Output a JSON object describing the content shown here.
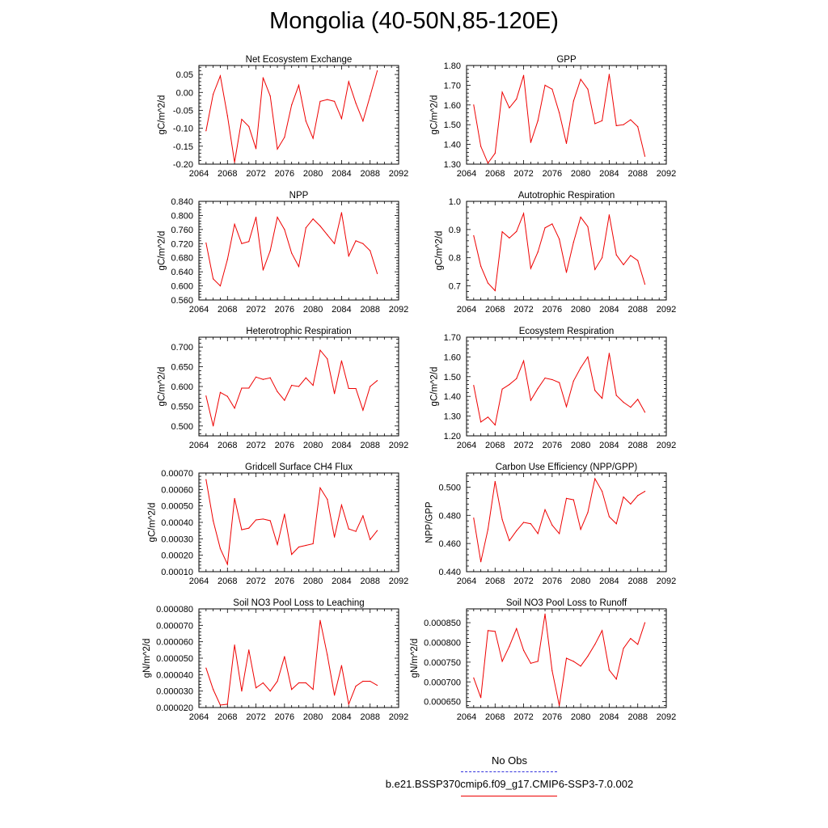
{
  "title": "Mongolia (40-50N,85-120E)",
  "legend": {
    "obs_label": "No Obs",
    "case_label": "b.e21.BSSP370cmip6.f09_g17.CMIP6-SSP3-7.0.002",
    "obs_color": "#3333dd",
    "case_color": "#ee0000"
  },
  "chart_data": [
    {
      "type": "line",
      "title": "Net Ecosystem Exchange",
      "ylabel": "gC/m^2/d",
      "xlim": [
        2064,
        2092
      ],
      "xticks": [
        2064,
        2068,
        2072,
        2076,
        2080,
        2084,
        2088,
        2092
      ],
      "xtick_labels": [
        "2064",
        "2068",
        "2072",
        "2076",
        "2080",
        "2084",
        "2088",
        "2092"
      ],
      "ylim": [
        -0.2,
        0.075
      ],
      "yticks": [
        -0.2,
        -0.15,
        -0.1,
        -0.05,
        0.0,
        0.05
      ],
      "ytick_labels": [
        "-0.20",
        "-0.15",
        "-0.10",
        "-0.05",
        "0.00",
        "0.05"
      ],
      "series": [
        {
          "color": "#ee0000",
          "x": [
            2065,
            2066,
            2067,
            2068,
            2069,
            2070,
            2071,
            2072,
            2073,
            2074,
            2075,
            2076,
            2077,
            2078,
            2079,
            2080,
            2081,
            2082,
            2083,
            2084,
            2085,
            2086,
            2087,
            2088,
            2089
          ],
          "values": [
            -0.107,
            -0.005,
            0.046,
            -0.065,
            -0.195,
            -0.075,
            -0.095,
            -0.157,
            0.041,
            -0.01,
            -0.158,
            -0.125,
            -0.035,
            0.02,
            -0.08,
            -0.128,
            -0.025,
            -0.02,
            -0.025,
            -0.073,
            0.03,
            -0.03,
            -0.08,
            -0.01,
            0.06
          ]
        }
      ]
    },
    {
      "type": "line",
      "title": "GPP",
      "ylabel": "gC/m^2/d",
      "xlim": [
        2064,
        2092
      ],
      "xticks": [
        2064,
        2068,
        2072,
        2076,
        2080,
        2084,
        2088,
        2092
      ],
      "xtick_labels": [
        "2064",
        "2068",
        "2072",
        "2076",
        "2080",
        "2084",
        "2088",
        "2092"
      ],
      "ylim": [
        1.3,
        1.8
      ],
      "yticks": [
        1.3,
        1.4,
        1.5,
        1.6,
        1.7,
        1.8
      ],
      "ytick_labels": [
        "1.30",
        "1.40",
        "1.50",
        "1.60",
        "1.70",
        "1.80"
      ],
      "series": [
        {
          "color": "#ee0000",
          "x": [
            2065,
            2066,
            2067,
            2068,
            2069,
            2070,
            2071,
            2072,
            2073,
            2074,
            2075,
            2076,
            2077,
            2078,
            2079,
            2080,
            2081,
            2082,
            2083,
            2084,
            2085,
            2086,
            2087,
            2088,
            2089
          ],
          "values": [
            1.6,
            1.39,
            1.305,
            1.355,
            1.665,
            1.585,
            1.63,
            1.75,
            1.41,
            1.52,
            1.7,
            1.68,
            1.56,
            1.405,
            1.62,
            1.73,
            1.68,
            1.505,
            1.52,
            1.755,
            1.495,
            1.5,
            1.525,
            1.49,
            1.34
          ]
        }
      ]
    },
    {
      "type": "line",
      "title": "NPP",
      "ylabel": "gC/m^2/d",
      "xlim": [
        2064,
        2092
      ],
      "xticks": [
        2064,
        2068,
        2072,
        2076,
        2080,
        2084,
        2088,
        2092
      ],
      "xtick_labels": [
        "2064",
        "2068",
        "2072",
        "2076",
        "2080",
        "2084",
        "2088",
        "2092"
      ],
      "ylim": [
        0.56,
        0.84
      ],
      "yticks": [
        0.56,
        0.6,
        0.64,
        0.68,
        0.72,
        0.76,
        0.8,
        0.84
      ],
      "ytick_labels": [
        "0.560",
        "0.600",
        "0.640",
        "0.680",
        "0.720",
        "0.760",
        "0.800",
        "0.840"
      ],
      "series": [
        {
          "color": "#ee0000",
          "x": [
            2065,
            2066,
            2067,
            2068,
            2069,
            2070,
            2071,
            2072,
            2073,
            2074,
            2075,
            2076,
            2077,
            2078,
            2079,
            2080,
            2081,
            2082,
            2083,
            2084,
            2085,
            2086,
            2087,
            2088,
            2089
          ],
          "values": [
            0.722,
            0.62,
            0.6,
            0.675,
            0.775,
            0.72,
            0.726,
            0.795,
            0.645,
            0.7,
            0.795,
            0.76,
            0.693,
            0.655,
            0.765,
            0.79,
            0.77,
            0.745,
            0.72,
            0.808,
            0.685,
            0.728,
            0.72,
            0.7,
            0.635
          ]
        }
      ]
    },
    {
      "type": "line",
      "title": "Autotrophic Respiration",
      "ylabel": "gC/m^2/d",
      "xlim": [
        2064,
        2092
      ],
      "xticks": [
        2064,
        2068,
        2072,
        2076,
        2080,
        2084,
        2088,
        2092
      ],
      "xtick_labels": [
        "2064",
        "2068",
        "2072",
        "2076",
        "2080",
        "2084",
        "2088",
        "2092"
      ],
      "ylim": [
        0.65,
        1.0
      ],
      "yticks": [
        0.7,
        0.8,
        0.9,
        1.0
      ],
      "ytick_labels": [
        "0.7",
        "0.8",
        "0.9",
        "1.0"
      ],
      "series": [
        {
          "color": "#ee0000",
          "x": [
            2065,
            2066,
            2067,
            2068,
            2069,
            2070,
            2071,
            2072,
            2073,
            2074,
            2075,
            2076,
            2077,
            2078,
            2079,
            2080,
            2081,
            2082,
            2083,
            2084,
            2085,
            2086,
            2087,
            2088,
            2089
          ],
          "values": [
            0.878,
            0.77,
            0.71,
            0.683,
            0.892,
            0.87,
            0.893,
            0.957,
            0.762,
            0.82,
            0.906,
            0.92,
            0.866,
            0.748,
            0.855,
            0.944,
            0.91,
            0.758,
            0.8,
            0.952,
            0.81,
            0.775,
            0.808,
            0.79,
            0.706
          ]
        }
      ]
    },
    {
      "type": "line",
      "title": "Heterotrophic Respiration",
      "ylabel": "gC/m^2/d",
      "xlim": [
        2064,
        2092
      ],
      "xticks": [
        2064,
        2068,
        2072,
        2076,
        2080,
        2084,
        2088,
        2092
      ],
      "xtick_labels": [
        "2064",
        "2068",
        "2072",
        "2076",
        "2080",
        "2084",
        "2088",
        "2092"
      ],
      "ylim": [
        0.475,
        0.725
      ],
      "yticks": [
        0.5,
        0.55,
        0.6,
        0.65,
        0.7
      ],
      "ytick_labels": [
        "0.500",
        "0.550",
        "0.600",
        "0.650",
        "0.700"
      ],
      "series": [
        {
          "color": "#ee0000",
          "x": [
            2065,
            2066,
            2067,
            2068,
            2069,
            2070,
            2071,
            2072,
            2073,
            2074,
            2075,
            2076,
            2077,
            2078,
            2079,
            2080,
            2081,
            2082,
            2083,
            2084,
            2085,
            2086,
            2087,
            2088,
            2089
          ],
          "values": [
            0.576,
            0.5,
            0.585,
            0.575,
            0.545,
            0.596,
            0.596,
            0.624,
            0.618,
            0.622,
            0.587,
            0.565,
            0.603,
            0.6,
            0.622,
            0.603,
            0.692,
            0.67,
            0.582,
            0.665,
            0.595,
            0.595,
            0.54,
            0.6,
            0.615
          ]
        }
      ]
    },
    {
      "type": "line",
      "title": "Ecosystem Respiration",
      "ylabel": "gC/m^2/d",
      "xlim": [
        2064,
        2092
      ],
      "xticks": [
        2064,
        2068,
        2072,
        2076,
        2080,
        2084,
        2088,
        2092
      ],
      "xtick_labels": [
        "2064",
        "2068",
        "2072",
        "2076",
        "2080",
        "2084",
        "2088",
        "2092"
      ],
      "ylim": [
        1.2,
        1.7
      ],
      "yticks": [
        1.2,
        1.3,
        1.4,
        1.5,
        1.6,
        1.7
      ],
      "ytick_labels": [
        "1.20",
        "1.30",
        "1.40",
        "1.50",
        "1.60",
        "1.70"
      ],
      "series": [
        {
          "color": "#ee0000",
          "x": [
            2065,
            2066,
            2067,
            2068,
            2069,
            2070,
            2071,
            2072,
            2073,
            2074,
            2075,
            2076,
            2077,
            2078,
            2079,
            2080,
            2081,
            2082,
            2083,
            2084,
            2085,
            2086,
            2087,
            2088,
            2089
          ],
          "values": [
            1.455,
            1.27,
            1.295,
            1.255,
            1.437,
            1.46,
            1.49,
            1.58,
            1.38,
            1.44,
            1.493,
            1.485,
            1.47,
            1.348,
            1.478,
            1.545,
            1.6,
            1.43,
            1.39,
            1.618,
            1.405,
            1.37,
            1.345,
            1.385,
            1.32
          ]
        }
      ]
    },
    {
      "type": "line",
      "title": "Gridcell Surface CH4 Flux",
      "ylabel": "gC/m^2/d",
      "xlim": [
        2064,
        2092
      ],
      "xticks": [
        2064,
        2068,
        2072,
        2076,
        2080,
        2084,
        2088,
        2092
      ],
      "xtick_labels": [
        "2064",
        "2068",
        "2072",
        "2076",
        "2080",
        "2084",
        "2088",
        "2092"
      ],
      "ylim": [
        0.0001,
        0.0007
      ],
      "yticks": [
        0.0001,
        0.0002,
        0.0003,
        0.0004,
        0.0005,
        0.0006,
        0.0007
      ],
      "ytick_labels": [
        "0.00010",
        "0.00020",
        "0.00030",
        "0.00040",
        "0.00050",
        "0.00060",
        "0.00070"
      ],
      "series": [
        {
          "color": "#ee0000",
          "x": [
            2065,
            2066,
            2067,
            2068,
            2069,
            2070,
            2071,
            2072,
            2073,
            2074,
            2075,
            2076,
            2077,
            2078,
            2079,
            2080,
            2081,
            2082,
            2083,
            2084,
            2085,
            2086,
            2087,
            2088,
            2089
          ],
          "values": [
            0.00066,
            0.00041,
            0.00024,
            0.000145,
            0.000545,
            0.000355,
            0.000365,
            0.000415,
            0.00042,
            0.00041,
            0.000265,
            0.00045,
            0.000205,
            0.00025,
            0.00026,
            0.00027,
            0.00061,
            0.00054,
            0.00031,
            0.000505,
            0.00036,
            0.000345,
            0.00044,
            0.000295,
            0.00035
          ]
        }
      ]
    },
    {
      "type": "line",
      "title": "Carbon Use Efficiency (NPP/GPP)",
      "ylabel": "NPP/GPP",
      "xlim": [
        2064,
        2092
      ],
      "xticks": [
        2064,
        2068,
        2072,
        2076,
        2080,
        2084,
        2088,
        2092
      ],
      "xtick_labels": [
        "2064",
        "2068",
        "2072",
        "2076",
        "2080",
        "2084",
        "2088",
        "2092"
      ],
      "ylim": [
        0.44,
        0.51
      ],
      "yticks": [
        0.44,
        0.46,
        0.48,
        0.5
      ],
      "ytick_labels": [
        "0.440",
        "0.460",
        "0.480",
        "0.500"
      ],
      "series": [
        {
          "color": "#ee0000",
          "x": [
            2065,
            2066,
            2067,
            2068,
            2069,
            2070,
            2071,
            2072,
            2073,
            2074,
            2075,
            2076,
            2077,
            2078,
            2079,
            2080,
            2081,
            2082,
            2083,
            2084,
            2085,
            2086,
            2087,
            2088,
            2089
          ],
          "values": [
            0.478,
            0.447,
            0.47,
            0.504,
            0.477,
            0.462,
            0.469,
            0.475,
            0.474,
            0.467,
            0.484,
            0.473,
            0.467,
            0.492,
            0.491,
            0.47,
            0.482,
            0.506,
            0.497,
            0.479,
            0.474,
            0.493,
            0.488,
            0.494,
            0.497
          ]
        }
      ]
    },
    {
      "type": "line",
      "title": "Soil NO3 Pool Loss to Leaching",
      "ylabel": "gN/m^2/d",
      "xlim": [
        2064,
        2092
      ],
      "xticks": [
        2064,
        2068,
        2072,
        2076,
        2080,
        2084,
        2088,
        2092
      ],
      "xtick_labels": [
        "2064",
        "2068",
        "2072",
        "2076",
        "2080",
        "2084",
        "2088",
        "2092"
      ],
      "ylim": [
        2e-05,
        8e-05
      ],
      "yticks": [
        2e-05,
        3e-05,
        4e-05,
        5e-05,
        6e-05,
        7e-05,
        8e-05
      ],
      "ytick_labels": [
        "0.000020",
        "0.000030",
        "0.000040",
        "0.000050",
        "0.000060",
        "0.000070",
        "0.000080"
      ],
      "series": [
        {
          "color": "#ee0000",
          "x": [
            2065,
            2066,
            2067,
            2068,
            2069,
            2070,
            2071,
            2072,
            2073,
            2074,
            2075,
            2076,
            2077,
            2078,
            2079,
            2080,
            2081,
            2082,
            2083,
            2084,
            2085,
            2086,
            2087,
            2088,
            2089
          ],
          "values": [
            4.4e-05,
            3.1e-05,
            2.15e-05,
            2.2e-05,
            5.8e-05,
            3e-05,
            5.5e-05,
            3.2e-05,
            3.5e-05,
            3e-05,
            3.6e-05,
            5.1e-05,
            3.1e-05,
            3.5e-05,
            3.5e-05,
            3.1e-05,
            7.3e-05,
            5.2e-05,
            2.75e-05,
            4.55e-05,
            2.2e-05,
            3.3e-05,
            3.6e-05,
            3.6e-05,
            3.35e-05
          ]
        }
      ]
    },
    {
      "type": "line",
      "title": "Soil NO3 Pool Loss to Runoff",
      "ylabel": "gN/m^2/d",
      "xlim": [
        2064,
        2092
      ],
      "xticks": [
        2064,
        2068,
        2072,
        2076,
        2080,
        2084,
        2088,
        2092
      ],
      "xtick_labels": [
        "2064",
        "2068",
        "2072",
        "2076",
        "2080",
        "2084",
        "2088",
        "2092"
      ],
      "ylim": [
        0.000635,
        0.000885
      ],
      "yticks": [
        0.00065,
        0.0007,
        0.00075,
        0.0008,
        0.00085
      ],
      "ytick_labels": [
        "0.000650",
        "0.000700",
        "0.000750",
        "0.000800",
        "0.000850"
      ],
      "series": [
        {
          "color": "#ee0000",
          "x": [
            2065,
            2066,
            2067,
            2068,
            2069,
            2070,
            2071,
            2072,
            2073,
            2074,
            2075,
            2076,
            2077,
            2078,
            2079,
            2080,
            2081,
            2082,
            2083,
            2084,
            2085,
            2086,
            2087,
            2088,
            2089
          ],
          "values": [
            0.00071,
            0.00066,
            0.00083,
            0.000828,
            0.000752,
            0.00079,
            0.000835,
            0.00078,
            0.000747,
            0.000752,
            0.000872,
            0.000728,
            0.00064,
            0.00076,
            0.000752,
            0.00074,
            0.000765,
            0.000795,
            0.00083,
            0.00073,
            0.000707,
            0.000785,
            0.00081,
            0.000795,
            0.00085
          ]
        }
      ]
    }
  ]
}
